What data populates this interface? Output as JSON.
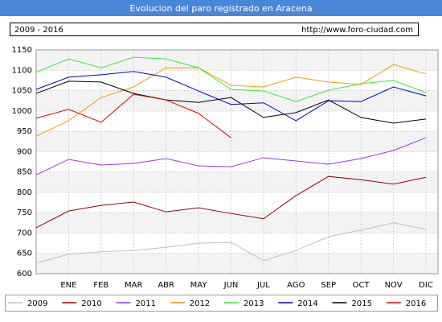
{
  "chart_data": {
    "type": "line",
    "title": "Evolucion del paro registrado en Aracena",
    "subtitle": "2009 - 2016",
    "source": "http://www.foro-ciudad.com",
    "categories": [
      null,
      "ENE",
      "FEB",
      "MAR",
      "ABR",
      "MAY",
      "JUN",
      "JUL",
      "AGO",
      "SEP",
      "OCT",
      "NOV",
      "DIC"
    ],
    "ylim": [
      600,
      1150
    ],
    "yticks": [
      600,
      650,
      700,
      750,
      800,
      850,
      900,
      950,
      1000,
      1050,
      1100,
      1150
    ],
    "grid": true,
    "legend": "bottom",
    "series": [
      {
        "name": "2009",
        "color": "#c0c0c0",
        "values": [
          626,
          648,
          654,
          657,
          665,
          675,
          677,
          632,
          657,
          691,
          707,
          725,
          709
        ]
      },
      {
        "name": "2010",
        "color": "#990000",
        "values": [
          713,
          754,
          768,
          776,
          752,
          762,
          748,
          735,
          792,
          839,
          831,
          820,
          837
        ]
      },
      {
        "name": "2011",
        "color": "#9933ff",
        "values": [
          843,
          881,
          867,
          871,
          883,
          865,
          863,
          885,
          877,
          869,
          883,
          903,
          934
        ]
      },
      {
        "name": "2012",
        "color": "#ff9900",
        "values": [
          938,
          976,
          1033,
          1059,
          1106,
          1106,
          1063,
          1059,
          1083,
          1071,
          1065,
          1114,
          1091
        ]
      },
      {
        "name": "2013",
        "color": "#33ee33",
        "values": [
          1095,
          1128,
          1106,
          1132,
          1128,
          1106,
          1053,
          1049,
          1023,
          1051,
          1067,
          1075,
          1045
        ]
      },
      {
        "name": "2014",
        "color": "#0000cc",
        "values": [
          1053,
          1083,
          1089,
          1097,
          1083,
          1049,
          1016,
          1020,
          976,
          1025,
          1023,
          1059,
          1037
        ]
      },
      {
        "name": "2015",
        "color": "#000000",
        "values": [
          1043,
          1073,
          1071,
          1043,
          1027,
          1021,
          1033,
          984,
          996,
          1027,
          984,
          970,
          980
        ]
      },
      {
        "name": "2016",
        "color": "#ee0000",
        "values": [
          982,
          1004,
          972,
          1041,
          1027,
          994,
          934,
          null,
          null,
          null,
          null,
          null,
          null
        ]
      }
    ]
  }
}
